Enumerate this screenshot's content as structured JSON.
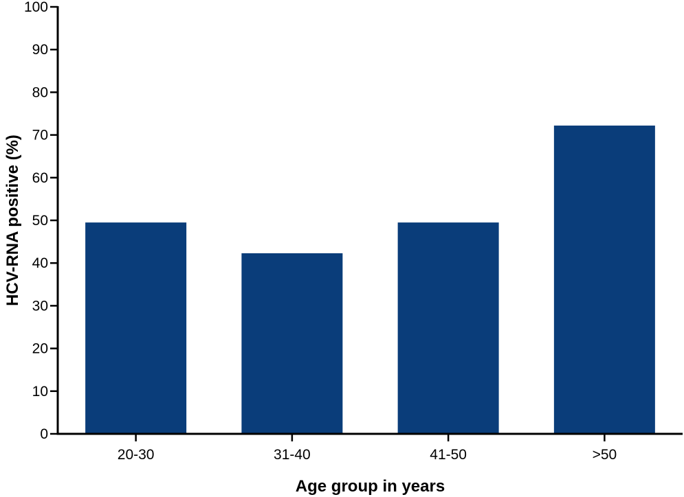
{
  "chart_data": {
    "type": "bar",
    "categories": [
      "20-30",
      "31-40",
      "41-50",
      ">50"
    ],
    "values": [
      49.5,
      42.3,
      49.5,
      72.2
    ],
    "title": "",
    "xlabel": "Age group in years",
    "ylabel": "HCV-RNA positive (%)",
    "ylim": [
      0,
      100
    ],
    "yticks": [
      0,
      10,
      20,
      30,
      40,
      50,
      60,
      70,
      80,
      90,
      100
    ],
    "grid": false,
    "bar_color": "#0a3d7a",
    "axis_color": "#000000"
  }
}
